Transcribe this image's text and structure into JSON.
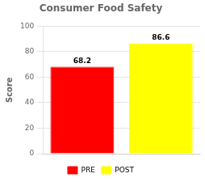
{
  "chart_data": {
    "type": "bar",
    "title": "Consumer Food Safety",
    "categories": [
      "PRE",
      "POST"
    ],
    "values": [
      68.2,
      86.6
    ],
    "colors": [
      "#ff0000",
      "#ffff00"
    ],
    "ylabel": "Score",
    "ylim": [
      0,
      100
    ],
    "yticks": [
      0,
      20,
      40,
      60,
      80,
      100
    ],
    "grid": true,
    "legend": "bottom",
    "data_labels": true,
    "tick_labels": "y"
  }
}
